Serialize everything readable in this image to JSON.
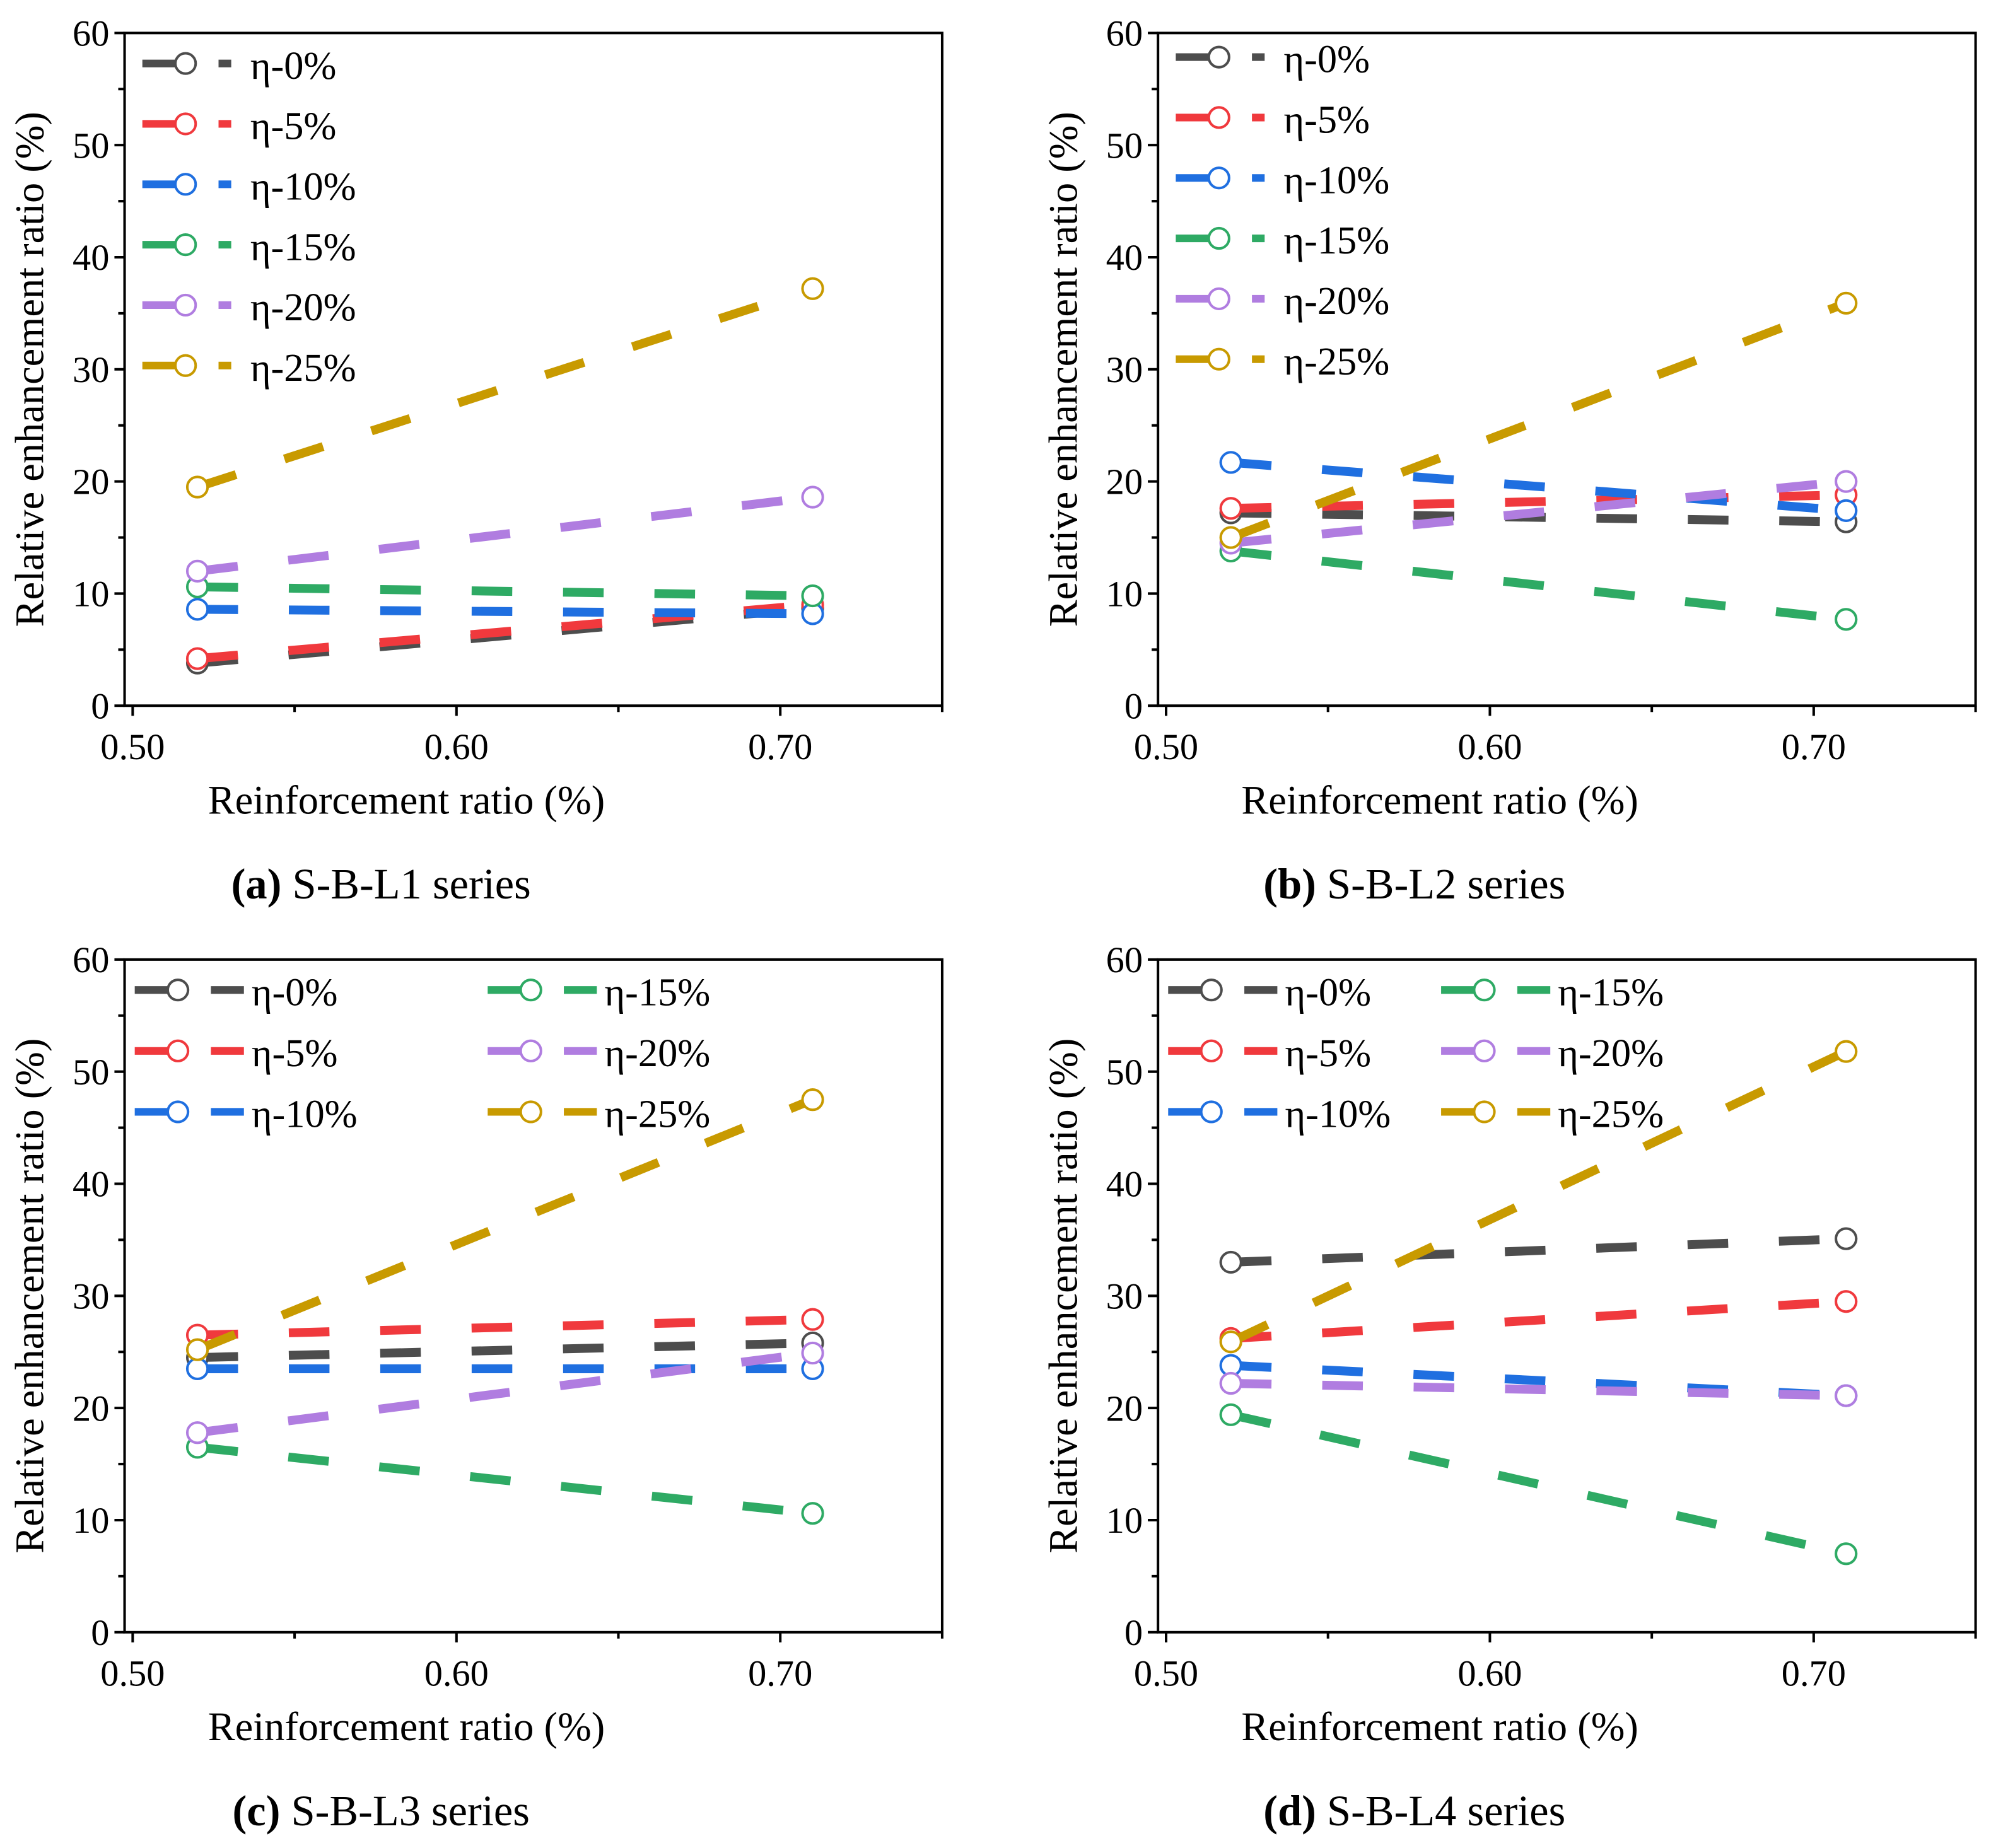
{
  "colors": {
    "η-0%": "#4d4d4d",
    "η-5%": "#f0393d",
    "η-10%": "#1f6fe0",
    "η-15%": "#2eaa64",
    "η-20%": "#b07de0",
    "η-25%": "#c89a00"
  },
  "chart_data": [
    {
      "type": "line",
      "panel": "a",
      "caption_letter": "(a)",
      "caption_text": " S-B-L1 series",
      "xlabel": "Reinforcement ratio (%)",
      "ylabel": "Relative enhancement ratio  (%)",
      "xlim": [
        0.4975,
        0.75
      ],
      "ylim": [
        0,
        60
      ],
      "xticks": [
        "0.50",
        "0.60",
        "0.70"
      ],
      "yticks": [
        "0",
        "10",
        "20",
        "30",
        "40",
        "50",
        "60"
      ],
      "legend_layout": "one-column",
      "legend_position": "top-left",
      "x": [
        0.52,
        0.71
      ],
      "series": [
        {
          "name": "η-0%",
          "values": [
            3.8,
            8.7
          ]
        },
        {
          "name": "η-5%",
          "values": [
            4.2,
            9.0
          ]
        },
        {
          "name": "η-10%",
          "values": [
            8.6,
            8.2
          ]
        },
        {
          "name": "η-15%",
          "values": [
            10.6,
            9.8
          ]
        },
        {
          "name": "η-20%",
          "values": [
            12.0,
            18.6
          ]
        },
        {
          "name": "η-25%",
          "values": [
            19.5,
            37.2
          ]
        }
      ]
    },
    {
      "type": "line",
      "panel": "b",
      "caption_letter": "(b)",
      "caption_text": " S-B-L2 series",
      "xlabel": "Reinforcement ratio (%)",
      "ylabel": "Relative enhancement ratio (%)",
      "xlim": [
        0.4975,
        0.75
      ],
      "ylim": [
        0,
        60
      ],
      "xticks": [
        "0.50",
        "0.60",
        "0.70"
      ],
      "yticks": [
        "0",
        "10",
        "20",
        "30",
        "40",
        "50",
        "60"
      ],
      "legend_layout": "one-column",
      "legend_position": "top-left",
      "x": [
        0.52,
        0.71
      ],
      "series": [
        {
          "name": "η-0%",
          "values": [
            17.2,
            16.4
          ]
        },
        {
          "name": "η-5%",
          "values": [
            17.6,
            18.8
          ]
        },
        {
          "name": "η-10%",
          "values": [
            21.7,
            17.4
          ]
        },
        {
          "name": "η-15%",
          "values": [
            13.8,
            7.7
          ]
        },
        {
          "name": "η-20%",
          "values": [
            14.5,
            20.0
          ]
        },
        {
          "name": "η-25%",
          "values": [
            15.0,
            35.9
          ]
        }
      ]
    },
    {
      "type": "line",
      "panel": "c",
      "caption_letter": "(c)",
      "caption_text": " S-B-L3 series",
      "xlabel": "Reinforcement ratio (%)",
      "ylabel": "Relative enhancement ratio (%)",
      "xlim": [
        0.4975,
        0.75
      ],
      "ylim": [
        0,
        60
      ],
      "xticks": [
        "0.50",
        "0.60",
        "0.70"
      ],
      "yticks": [
        "0",
        "10",
        "20",
        "30",
        "40",
        "50",
        "60"
      ],
      "legend_layout": "two-column",
      "legend_position": "top-left",
      "x": [
        0.52,
        0.71
      ],
      "series": [
        {
          "name": "η-0%",
          "values": [
            24.5,
            25.8
          ]
        },
        {
          "name": "η-5%",
          "values": [
            26.5,
            27.9
          ]
        },
        {
          "name": "η-10%",
          "values": [
            23.5,
            23.5
          ]
        },
        {
          "name": "η-15%",
          "values": [
            16.5,
            10.6
          ]
        },
        {
          "name": "η-20%",
          "values": [
            17.8,
            24.9
          ]
        },
        {
          "name": "η-25%",
          "values": [
            25.2,
            47.5
          ]
        }
      ]
    },
    {
      "type": "line",
      "panel": "d",
      "caption_letter": "(d)",
      "caption_text": " S-B-L4 series",
      "xlabel": "Reinforcement ratio (%)",
      "ylabel": "Relative enhancement ratio (%)",
      "xlim": [
        0.4975,
        0.75
      ],
      "ylim": [
        0,
        60
      ],
      "xticks": [
        "0.50",
        "0.60",
        "0.70"
      ],
      "yticks": [
        "0",
        "10",
        "20",
        "30",
        "40",
        "50",
        "60"
      ],
      "legend_layout": "two-column",
      "legend_position": "top-left",
      "x": [
        0.52,
        0.71
      ],
      "series": [
        {
          "name": "η-0%",
          "values": [
            33.0,
            35.1
          ]
        },
        {
          "name": "η-5%",
          "values": [
            26.2,
            29.5
          ]
        },
        {
          "name": "η-10%",
          "values": [
            23.8,
            21.1
          ]
        },
        {
          "name": "η-15%",
          "values": [
            19.4,
            7.0
          ]
        },
        {
          "name": "η-20%",
          "values": [
            22.2,
            21.1
          ]
        },
        {
          "name": "η-25%",
          "values": [
            25.9,
            51.8
          ]
        }
      ]
    }
  ]
}
